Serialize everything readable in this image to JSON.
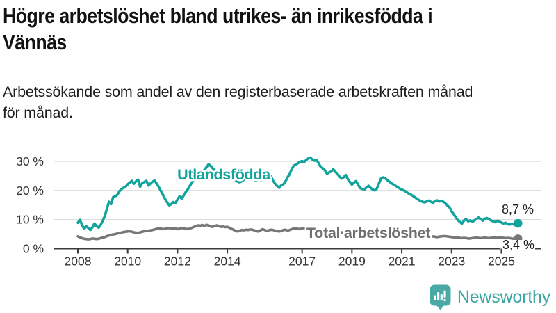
{
  "header": {
    "title_line1": "Högre arbetslöshet bland utrikes- än inrikesfödda i",
    "title_line2": "Vännäs",
    "subtitle_line1": "Arbetssökande som andel av den registerbaserade arbetskraften månad",
    "subtitle_line2": "för månad."
  },
  "chart_data": {
    "type": "line",
    "title": "Högre arbetslöshet bland utrikes- än inrikesfödda i Vännäs",
    "subtitle": "Arbetssökande som andel av den registerbaserade arbetskraften månad för månad.",
    "x_unit": "month",
    "x_start": "2008-01",
    "x_end": "2025-09",
    "x_tick_years": [
      2008,
      2010,
      2012,
      2014,
      2017,
      2019,
      2021,
      2023,
      2025
    ],
    "x_tick_labels": [
      "2008",
      "2010",
      "2012",
      "2014",
      "2017",
      "2019",
      "2021",
      "2023",
      "2025"
    ],
    "y_ticks": [
      0,
      10,
      20,
      30
    ],
    "y_tick_labels": [
      "0 %",
      "10 %",
      "20 %",
      "30 %"
    ],
    "ylim": [
      0,
      32
    ],
    "grid": "horizontal",
    "legend_position": "inline-labels",
    "series": [
      {
        "name": "Utlandsfödda",
        "color": "#12a39c",
        "end_label": "8,7 %",
        "last_value": 8.7,
        "values": [
          8.9,
          9.9,
          8.2,
          6.8,
          7.7,
          7.2,
          6.4,
          7.3,
          8.6,
          7.8,
          7.2,
          8.2,
          9.5,
          11.2,
          13.7,
          16.1,
          15.3,
          17.7,
          18.0,
          18.5,
          19.7,
          20.5,
          20.9,
          21.3,
          22.1,
          22.7,
          23.3,
          22.3,
          23.1,
          23.7,
          21.3,
          22.5,
          22.9,
          23.3,
          21.7,
          22.4,
          23.0,
          23.4,
          22.3,
          21.2,
          19.8,
          18.5,
          17.1,
          15.9,
          14.9,
          15.3,
          16.0,
          15.6,
          16.9,
          18.0,
          17.2,
          18.3,
          19.5,
          20.4,
          21.6,
          22.8,
          23.5,
          24.2,
          25.0,
          25.7,
          26.3,
          27.1,
          28.0,
          29.0,
          28.4,
          27.6,
          26.9,
          26.3,
          25.8,
          26.2,
          25.6,
          25.1,
          25.4,
          24.9,
          24.4,
          23.9,
          23.4,
          23.0,
          22.8,
          23.2,
          23.7,
          24.1,
          23.8,
          24.2,
          24.0,
          23.7,
          23.4,
          23.8,
          23.5,
          23.7,
          23.6,
          23.9,
          24.3,
          24.9,
          23.4,
          22.3,
          21.5,
          20.9,
          21.8,
          22.1,
          23.1,
          24.5,
          25.6,
          27.3,
          28.5,
          28.9,
          29.4,
          29.8,
          30.1,
          29.7,
          30.5,
          31.0,
          31.3,
          30.6,
          30.2,
          30.5,
          29.3,
          28.1,
          27.6,
          26.9,
          25.7,
          26.2,
          26.5,
          27.3,
          26.4,
          25.7,
          24.8,
          24.1,
          24.5,
          25.3,
          23.9,
          22.9,
          22.0,
          22.7,
          23.2,
          21.9,
          20.8,
          20.5,
          20.3,
          21.0,
          21.6,
          20.9,
          20.3,
          20.0,
          20.6,
          22.4,
          24.1,
          24.5,
          24.2,
          23.6,
          23.0,
          22.5,
          22.0,
          21.6,
          21.1,
          20.7,
          20.3,
          20.0,
          19.6,
          19.1,
          18.7,
          18.3,
          17.8,
          17.3,
          16.8,
          16.4,
          16.1,
          15.9,
          16.2,
          16.5,
          16.1,
          15.8,
          16.3,
          16.6,
          16.2,
          16.4,
          16.1,
          15.6,
          14.8,
          14.2,
          12.8,
          11.9,
          10.8,
          9.8,
          9.2,
          8.6,
          9.7,
          10.2,
          9.4,
          9.7,
          9.2,
          9.7,
          10.2,
          10.7,
          10.2,
          9.6,
          10.3,
          10.5,
          10.2,
          9.7,
          9.4,
          9.1,
          9.6,
          9.3,
          9.0,
          8.6,
          8.9,
          8.4,
          8.3,
          8.5,
          8.3,
          8.4,
          8.7
        ]
      },
      {
        "name": "Total arbetslöshet",
        "color": "#77777b",
        "end_label": "3,4 %",
        "last_value": 3.4,
        "values": [
          4.2,
          3.9,
          3.6,
          3.4,
          3.3,
          3.2,
          3.3,
          3.5,
          3.4,
          3.3,
          3.4,
          3.6,
          3.8,
          4.0,
          4.3,
          4.5,
          4.7,
          4.9,
          5.0,
          5.2,
          5.4,
          5.5,
          5.7,
          5.8,
          5.9,
          6.0,
          5.8,
          5.6,
          5.5,
          5.4,
          5.6,
          5.8,
          6.0,
          6.1,
          6.2,
          6.3,
          6.4,
          6.6,
          6.8,
          7.0,
          6.9,
          6.7,
          6.8,
          7.0,
          7.1,
          7.0,
          6.9,
          7.0,
          6.7,
          6.9,
          7.1,
          7.0,
          6.8,
          6.7,
          6.9,
          7.2,
          7.5,
          7.8,
          8.0,
          7.9,
          8.1,
          7.8,
          8.2,
          7.9,
          7.6,
          7.5,
          7.8,
          8.0,
          7.7,
          7.5,
          7.6,
          7.4,
          7.5,
          7.2,
          6.8,
          6.5,
          6.1,
          5.9,
          6.2,
          6.4,
          6.3,
          6.5,
          6.4,
          6.6,
          6.5,
          6.3,
          6.0,
          5.9,
          6.3,
          6.7,
          6.4,
          6.1,
          6.3,
          6.5,
          6.4,
          6.2,
          6.0,
          5.9,
          6.1,
          6.4,
          6.5,
          6.2,
          6.4,
          6.7,
          6.9,
          7.0,
          6.8,
          6.7,
          7.0,
          7.1,
          6.9,
          7.0,
          6.8,
          6.9,
          6.7,
          6.6,
          6.5,
          6.4,
          6.3,
          6.2,
          6.1,
          6.0,
          5.9,
          5.9,
          5.8,
          5.7,
          5.6,
          5.6,
          5.5,
          5.4,
          5.4,
          5.3,
          5.3,
          5.2,
          5.2,
          5.1,
          5.1,
          5.0,
          5.0,
          4.9,
          4.9,
          4.9,
          5.0,
          5.0,
          5.1,
          5.3,
          5.7,
          5.9,
          5.8,
          5.7,
          5.6,
          5.5,
          5.4,
          5.3,
          5.2,
          5.1,
          4.9,
          4.8,
          4.7,
          4.7,
          4.6,
          4.6,
          4.5,
          4.5,
          4.4,
          4.4,
          4.3,
          4.3,
          4.3,
          4.2,
          4.1,
          4.2,
          4.1,
          4.0,
          4.1,
          4.2,
          4.3,
          4.3,
          4.2,
          4.1,
          4.0,
          3.9,
          3.8,
          3.8,
          3.7,
          3.6,
          3.7,
          3.6,
          3.5,
          3.5,
          3.6,
          3.7,
          3.8,
          3.7,
          3.6,
          3.7,
          3.8,
          3.7,
          3.6,
          3.7,
          3.8,
          3.8,
          3.7,
          3.8,
          3.8,
          3.7,
          3.6,
          3.7,
          3.6,
          3.5,
          3.4,
          3.3,
          3.4
        ]
      }
    ]
  },
  "footer": {
    "brand": "Newsworthy",
    "brand_color": "#3fa7a3",
    "logo_icon": "bar-chart-speech-bubble-icon"
  }
}
